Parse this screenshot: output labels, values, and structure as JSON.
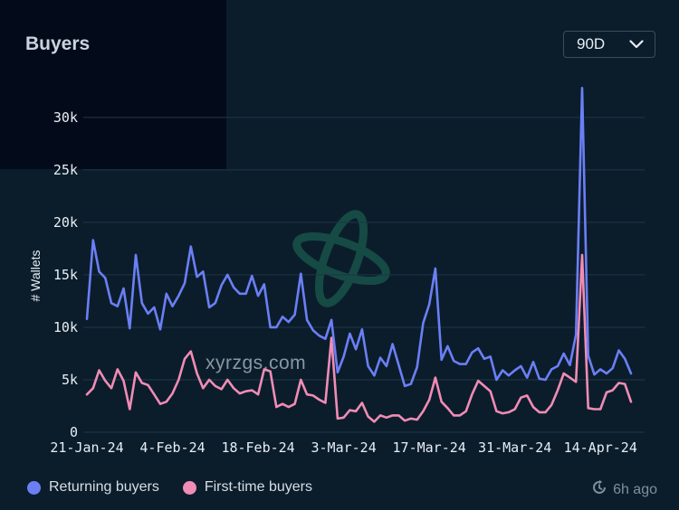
{
  "header": {
    "title": "Buyers"
  },
  "range_selector": {
    "value": "90D",
    "icon": "chevron-down-icon"
  },
  "footer": {
    "updated_text": "6h ago",
    "updated_icon": "clock-refresh-icon"
  },
  "watermark": {
    "text": "xyrzgs.com",
    "logo_icon": "orbit-logo-icon"
  },
  "colors": {
    "returning": "#6b7ff5",
    "first_time": "#f08cb6",
    "grid": "#1f3648",
    "background": "#0b1d2b"
  },
  "chart_data": {
    "type": "line",
    "ylabel": "# Wallets",
    "ylim": [
      0,
      33000
    ],
    "y_ticks": [
      {
        "value": 0,
        "label": "0"
      },
      {
        "value": 5000,
        "label": "5k"
      },
      {
        "value": 10000,
        "label": "10k"
      },
      {
        "value": 15000,
        "label": "15k"
      },
      {
        "value": 20000,
        "label": "20k"
      },
      {
        "value": 25000,
        "label": "25k"
      },
      {
        "value": 30000,
        "label": "30k"
      }
    ],
    "x_ticks": [
      "21-Jan-24",
      "4-Feb-24",
      "18-Feb-24",
      "3-Mar-24",
      "17-Mar-24",
      "31-Mar-24",
      "14-Apr-24"
    ],
    "x_tick_index": [
      0,
      14,
      28,
      42,
      56,
      70,
      84
    ],
    "x_start": "21-Jan-24",
    "x_end": "18-Apr-24",
    "legend_position": "bottom-left",
    "grid": true,
    "series": [
      {
        "name": "Returning buyers",
        "color": "#6b7ff5",
        "values": [
          10800,
          18300,
          15300,
          14700,
          12300,
          12000,
          13700,
          9900,
          16900,
          12300,
          11300,
          11900,
          9800,
          13200,
          12000,
          13000,
          14200,
          17700,
          14800,
          15300,
          11900,
          12300,
          14000,
          15000,
          13800,
          13200,
          13200,
          14900,
          13000,
          14100,
          10000,
          10000,
          11000,
          10500,
          11200,
          15100,
          10700,
          9700,
          9200,
          8900,
          10700,
          5700,
          7200,
          9400,
          7900,
          9800,
          6300,
          5400,
          7100,
          6300,
          8400,
          6400,
          4400,
          4600,
          6200,
          10400,
          12200,
          15600,
          6900,
          8200,
          6800,
          6500,
          6500,
          7600,
          8000,
          7000,
          7200,
          5000,
          5900,
          5400,
          5900,
          6300,
          5200,
          6700,
          5100,
          5000,
          6000,
          6300,
          7500,
          6400,
          9300,
          32800,
          7300,
          5500,
          6000,
          5600,
          6100,
          7800,
          7000,
          5600
        ]
      },
      {
        "name": "First-time buyers",
        "color": "#f08cb6",
        "values": [
          3600,
          4200,
          5900,
          4900,
          4200,
          6000,
          4900,
          2200,
          5700,
          4700,
          4500,
          3600,
          2700,
          2900,
          3700,
          5000,
          7000,
          7700,
          5600,
          4200,
          5000,
          4400,
          4100,
          5000,
          4200,
          3700,
          3900,
          4000,
          3600,
          6000,
          5800,
          2400,
          2700,
          2400,
          2700,
          5000,
          3600,
          3500,
          3100,
          2800,
          9000,
          1300,
          1400,
          2100,
          2000,
          2800,
          1500,
          1000,
          1600,
          1400,
          1600,
          1600,
          1100,
          1300,
          1200,
          2000,
          3100,
          5200,
          2900,
          2300,
          1600,
          1600,
          2000,
          3600,
          4900,
          4400,
          3900,
          2000,
          1800,
          1900,
          2200,
          3300,
          3500,
          2400,
          1900,
          1900,
          2600,
          4000,
          5600,
          5200,
          4800,
          16900,
          2300,
          2200,
          2200,
          3800,
          4000,
          4700,
          4600,
          2900
        ]
      }
    ]
  }
}
